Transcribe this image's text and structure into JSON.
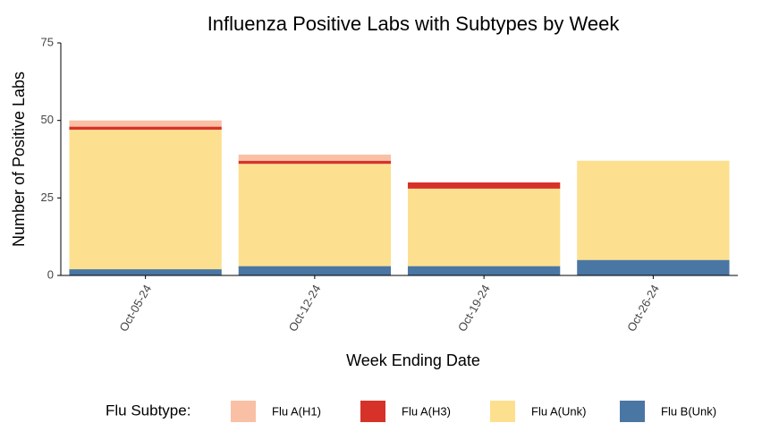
{
  "chart_data": {
    "type": "stacked_bar",
    "title": "Influenza Positive Labs with Subtypes by Week",
    "x_label": "Week Ending Date",
    "y_label": "Number of Positive Labs",
    "legend_title": "Flu Subtype:",
    "categories": [
      "Oct-05-24",
      "Oct-12-24",
      "Oct-19-24",
      "Oct-26-24"
    ],
    "series": [
      {
        "name": "Flu B(Unk)",
        "color": "#4a76a4",
        "values": [
          2,
          3,
          3,
          5
        ]
      },
      {
        "name": "Flu A(Unk)",
        "color": "#fde08f",
        "values": [
          45,
          33,
          25,
          32
        ]
      },
      {
        "name": "Flu A(H3)",
        "color": "#d7322a",
        "values": [
          1,
          1,
          2,
          0
        ]
      },
      {
        "name": "Flu A(H1)",
        "color": "#f9c0a5",
        "values": [
          2,
          2,
          0,
          0
        ]
      }
    ],
    "legend_order": [
      3,
      2,
      1,
      0
    ],
    "ylim": [
      0,
      75
    ],
    "yticks": [
      0,
      25,
      50,
      75
    ]
  }
}
